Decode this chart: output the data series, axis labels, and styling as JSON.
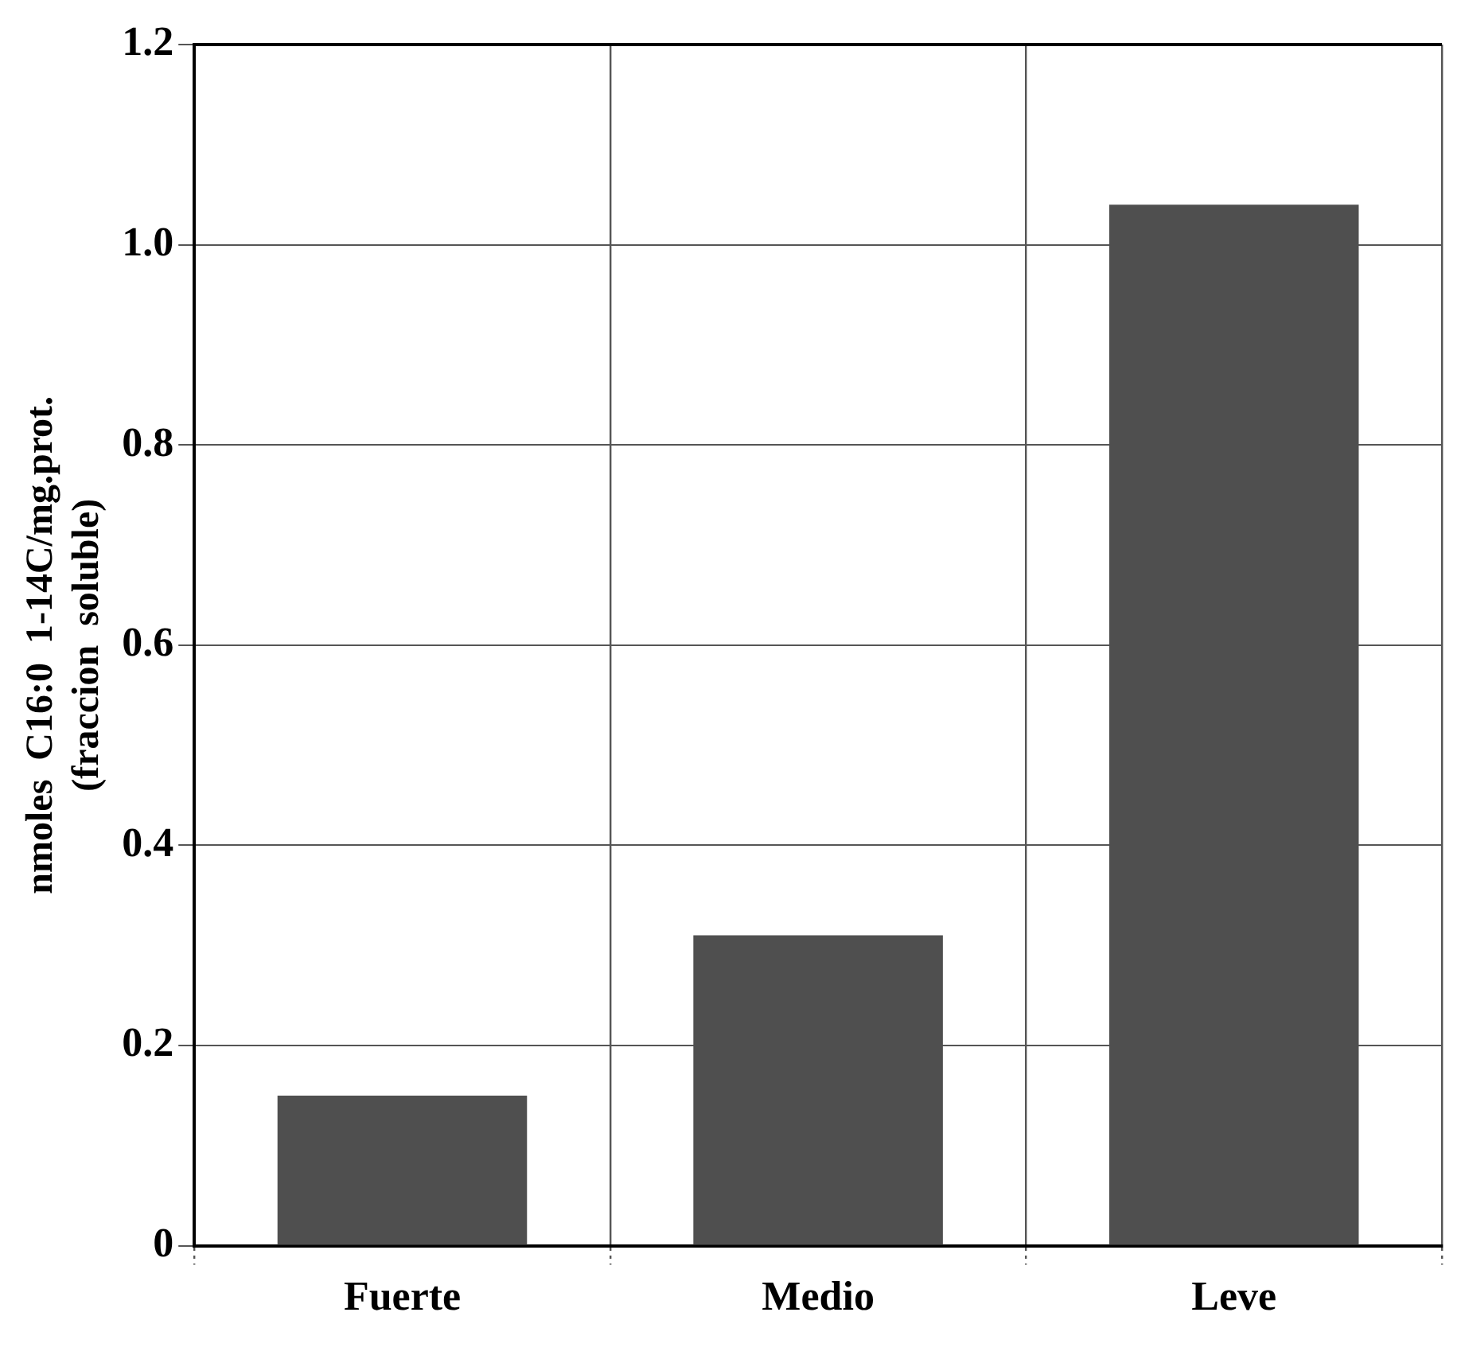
{
  "chart_data": {
    "type": "bar",
    "ylabel": "nmoles  C16:0  1-14C/mg.prot.\n(fraccion  soluble)",
    "categories": [
      "Fuerte",
      "Medio",
      "Leve"
    ],
    "values": [
      0.15,
      0.31,
      1.04
    ],
    "color": "#4f4f4f",
    "ylim": [
      0,
      1.2
    ],
    "yticks": [
      0,
      0.2,
      0.4,
      0.6,
      0.8,
      {
        "value": 1,
        "label": "1.0"
      },
      1.2
    ],
    "grid": true,
    "legend": false
  }
}
